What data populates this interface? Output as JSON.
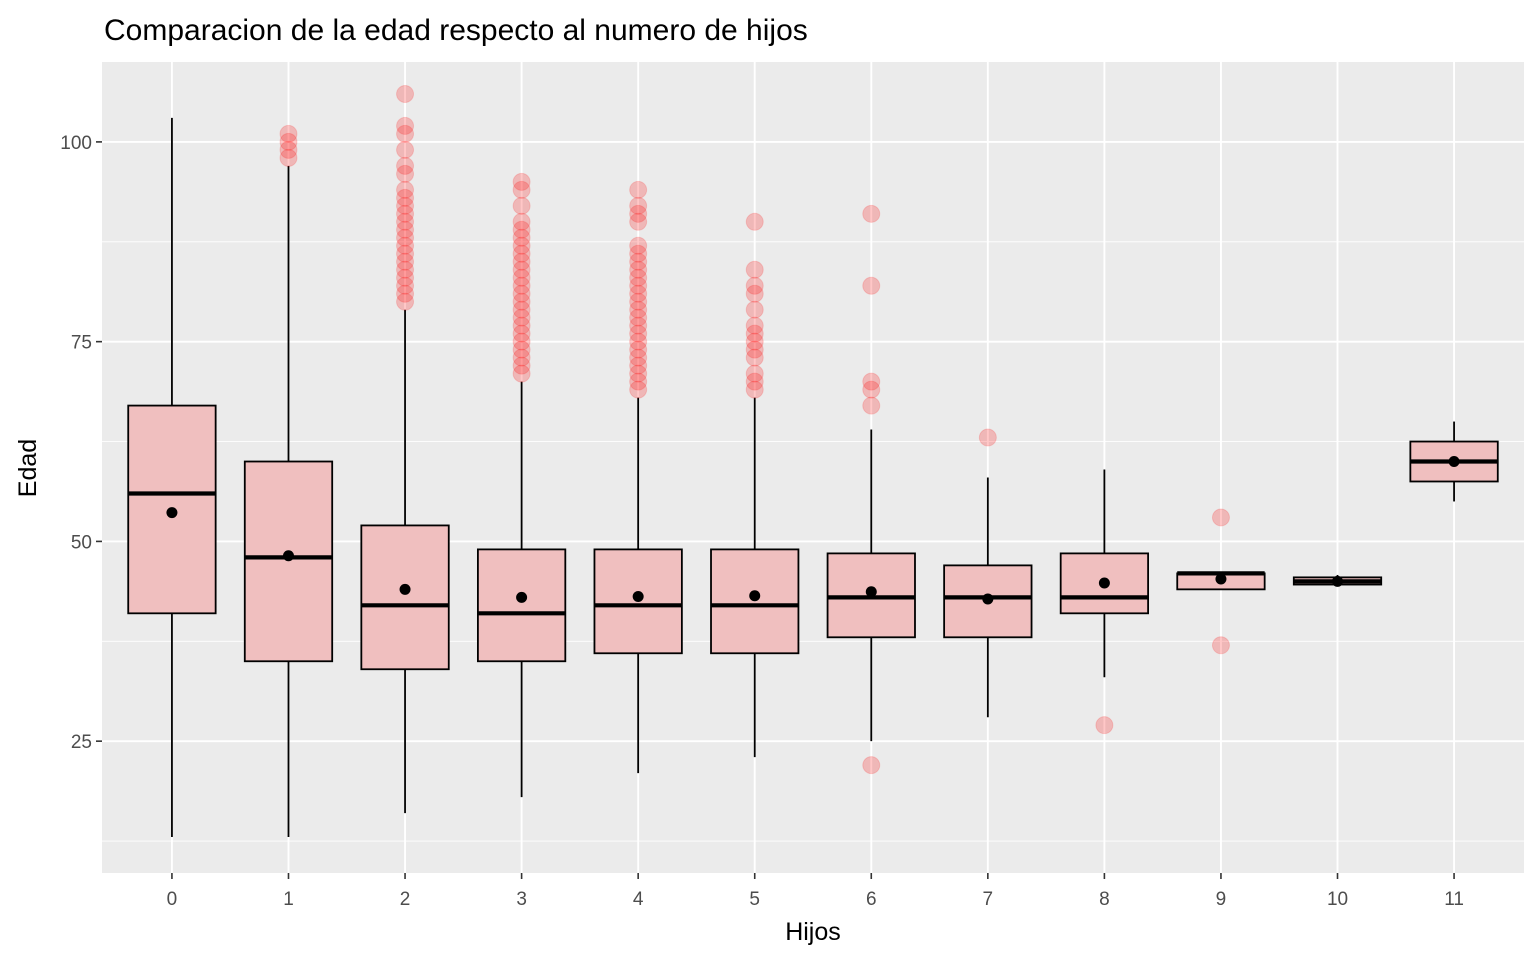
{
  "chart_data": {
    "type": "boxplot",
    "title": "Comparacion de la edad respecto al numero de hijos",
    "xlabel": "Hijos",
    "ylabel": "Edad",
    "ylim": [
      8.5,
      110
    ],
    "grid": true,
    "legend": "none",
    "y_ticks": [
      25,
      50,
      75,
      100
    ],
    "colors": {
      "panel_background": "#ebebeb",
      "grid": "#ffffff",
      "box_fill": "#f0bfbf",
      "box_outline": "#000000",
      "outlier": "#ff0000",
      "mean_point": "#000000"
    },
    "categories": [
      "0",
      "1",
      "2",
      "3",
      "4",
      "5",
      "6",
      "7",
      "8",
      "9",
      "10",
      "11"
    ],
    "boxes": [
      {
        "x": "0",
        "whisker_low": 13,
        "q1": 41,
        "median": 56,
        "q3": 67,
        "whisker_high": 103,
        "mean": 53.6,
        "outliers": []
      },
      {
        "x": "1",
        "whisker_low": 13,
        "q1": 35,
        "median": 48,
        "q3": 60,
        "whisker_high": 97,
        "mean": 48.2,
        "outliers": [
          98,
          99,
          100,
          101
        ]
      },
      {
        "x": "2",
        "whisker_low": 16,
        "q1": 34,
        "median": 42,
        "q3": 52,
        "whisker_high": 79,
        "mean": 44.0,
        "outliers": [
          80,
          81,
          82,
          83,
          84,
          85,
          86,
          87,
          88,
          89,
          90,
          91,
          92,
          93,
          94,
          96,
          97,
          99,
          101,
          102,
          106
        ]
      },
      {
        "x": "3",
        "whisker_low": 18,
        "q1": 35,
        "median": 41,
        "q3": 49,
        "whisker_high": 70,
        "mean": 43.0,
        "outliers": [
          71,
          72,
          73,
          74,
          75,
          76,
          77,
          78,
          79,
          80,
          81,
          82,
          83,
          84,
          85,
          86,
          87,
          88,
          89,
          90,
          92,
          94,
          95
        ]
      },
      {
        "x": "4",
        "whisker_low": 21,
        "q1": 36,
        "median": 42,
        "q3": 49,
        "whisker_high": 68,
        "mean": 43.1,
        "outliers": [
          69,
          70,
          71,
          72,
          73,
          74,
          75,
          76,
          77,
          78,
          79,
          80,
          81,
          82,
          83,
          84,
          85,
          86,
          87,
          90,
          91,
          92,
          94
        ]
      },
      {
        "x": "5",
        "whisker_low": 23,
        "q1": 36,
        "median": 42,
        "q3": 49,
        "whisker_high": 68,
        "mean": 43.2,
        "outliers": [
          69,
          70,
          71,
          73,
          74,
          75,
          76,
          77,
          79,
          81,
          82,
          84,
          90
        ]
      },
      {
        "x": "6",
        "whisker_low": 25,
        "q1": 38,
        "median": 43,
        "q3": 48.5,
        "whisker_high": 64,
        "mean": 43.7,
        "outliers": [
          22,
          67,
          69,
          70,
          82,
          91
        ]
      },
      {
        "x": "7",
        "whisker_low": 28,
        "q1": 38,
        "median": 43,
        "q3": 47,
        "whisker_high": 58,
        "mean": 42.8,
        "outliers": [
          63
        ]
      },
      {
        "x": "8",
        "whisker_low": 33,
        "q1": 41,
        "median": 43,
        "q3": 48.5,
        "whisker_high": 59,
        "mean": 44.8,
        "outliers": [
          27
        ]
      },
      {
        "x": "9",
        "whisker_low": 44,
        "q1": 44,
        "median": 46,
        "q3": 46,
        "whisker_high": 46,
        "mean": 45.3,
        "outliers": [
          37,
          53
        ]
      },
      {
        "x": "10",
        "whisker_low": 44.5,
        "q1": 44.6,
        "median": 45,
        "q3": 45.5,
        "whisker_high": 45.8,
        "mean": 45.0,
        "outliers": []
      },
      {
        "x": "11",
        "whisker_low": 55,
        "q1": 57.5,
        "median": 60,
        "q3": 62.5,
        "whisker_high": 65,
        "mean": 60.0,
        "outliers": []
      }
    ]
  }
}
